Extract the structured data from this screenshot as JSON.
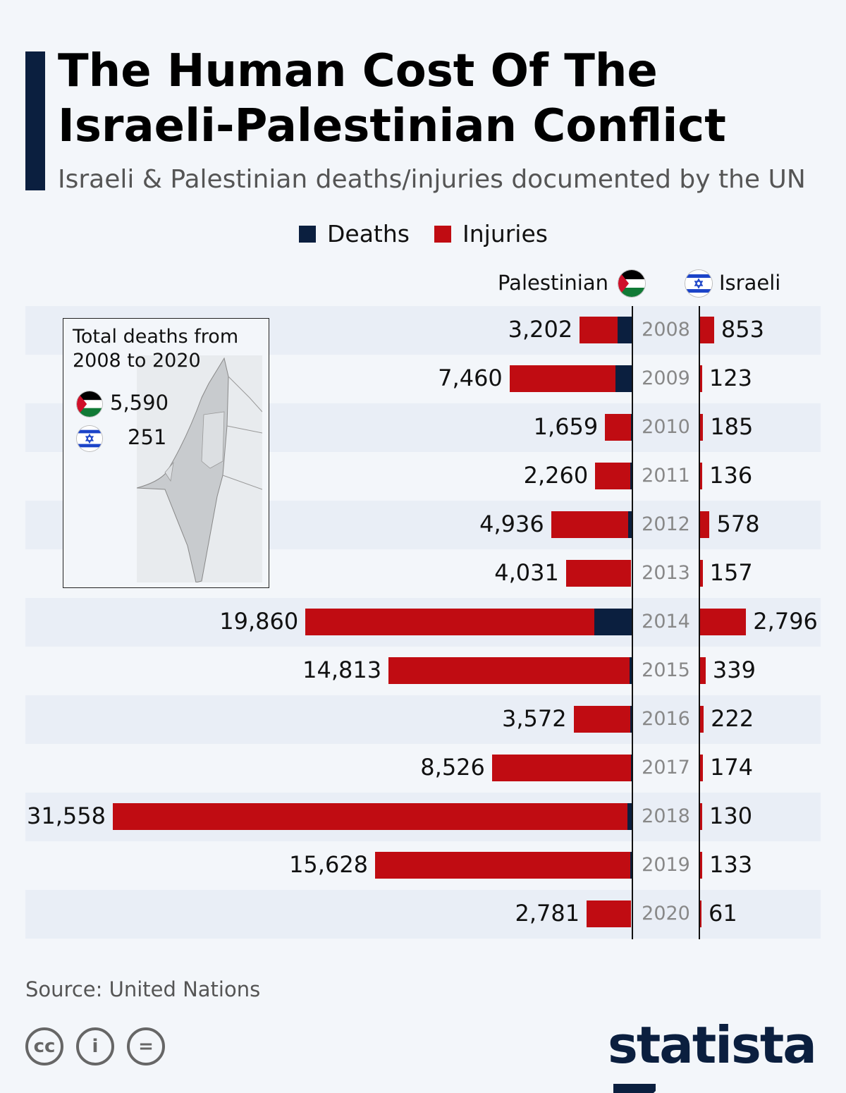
{
  "title": "The Human Cost Of The\nIsraeli-Palestinian Conflict",
  "subtitle": "Israeli & Palestinian deaths/injuries documented by the UN",
  "legend": {
    "deaths": "Deaths",
    "injuries": "Injuries"
  },
  "colors": {
    "deaths": "#0b1f3f",
    "injuries": "#c00c12",
    "row_shade": "#e9eef6"
  },
  "sides": {
    "palestinian": "Palestinian",
    "israeli": "Israeli"
  },
  "inset": {
    "title": "Total deaths from 2008 to 2020",
    "palestinian_total": "5,590",
    "israeli_total": "251"
  },
  "chart_data": {
    "type": "bar",
    "orientation": "horizontal-diverging",
    "stacked": true,
    "categories": [
      "2008",
      "2009",
      "2010",
      "2011",
      "2012",
      "2013",
      "2014",
      "2015",
      "2016",
      "2017",
      "2018",
      "2019",
      "2020"
    ],
    "palestinian_total": [
      3202,
      7460,
      1659,
      2260,
      4936,
      4031,
      19860,
      14813,
      3572,
      8526,
      31558,
      15628,
      2781
    ],
    "palestinian_total_labels": [
      "3,202",
      "7,460",
      "1,659",
      "2,260",
      "4,936",
      "4,031",
      "19,860",
      "14,813",
      "3,572",
      "8,526",
      "31,558",
      "15,628",
      "2,781"
    ],
    "palestinian_deaths": [
      887,
      1034,
      95,
      118,
      260,
      39,
      2329,
      170,
      110,
      77,
      300,
      137,
      34
    ],
    "israeli_total": [
      853,
      123,
      185,
      136,
      578,
      157,
      2796,
      339,
      222,
      174,
      130,
      133,
      61
    ],
    "israeli_total_labels": [
      "853",
      "123",
      "185",
      "136",
      "578",
      "157",
      "2,796",
      "339",
      "222",
      "174",
      "130",
      "133",
      "61"
    ],
    "israeli_deaths": [
      31,
      9,
      9,
      11,
      7,
      4,
      88,
      28,
      17,
      18,
      14,
      10,
      5
    ],
    "series": [
      {
        "name": "Deaths"
      },
      {
        "name": "Injuries"
      }
    ],
    "grid": false,
    "legend_position": "top"
  },
  "source": "Source: United Nations",
  "footer": {
    "cc": "cc",
    "by": "i",
    "nd": "=",
    "logo": "statista"
  }
}
